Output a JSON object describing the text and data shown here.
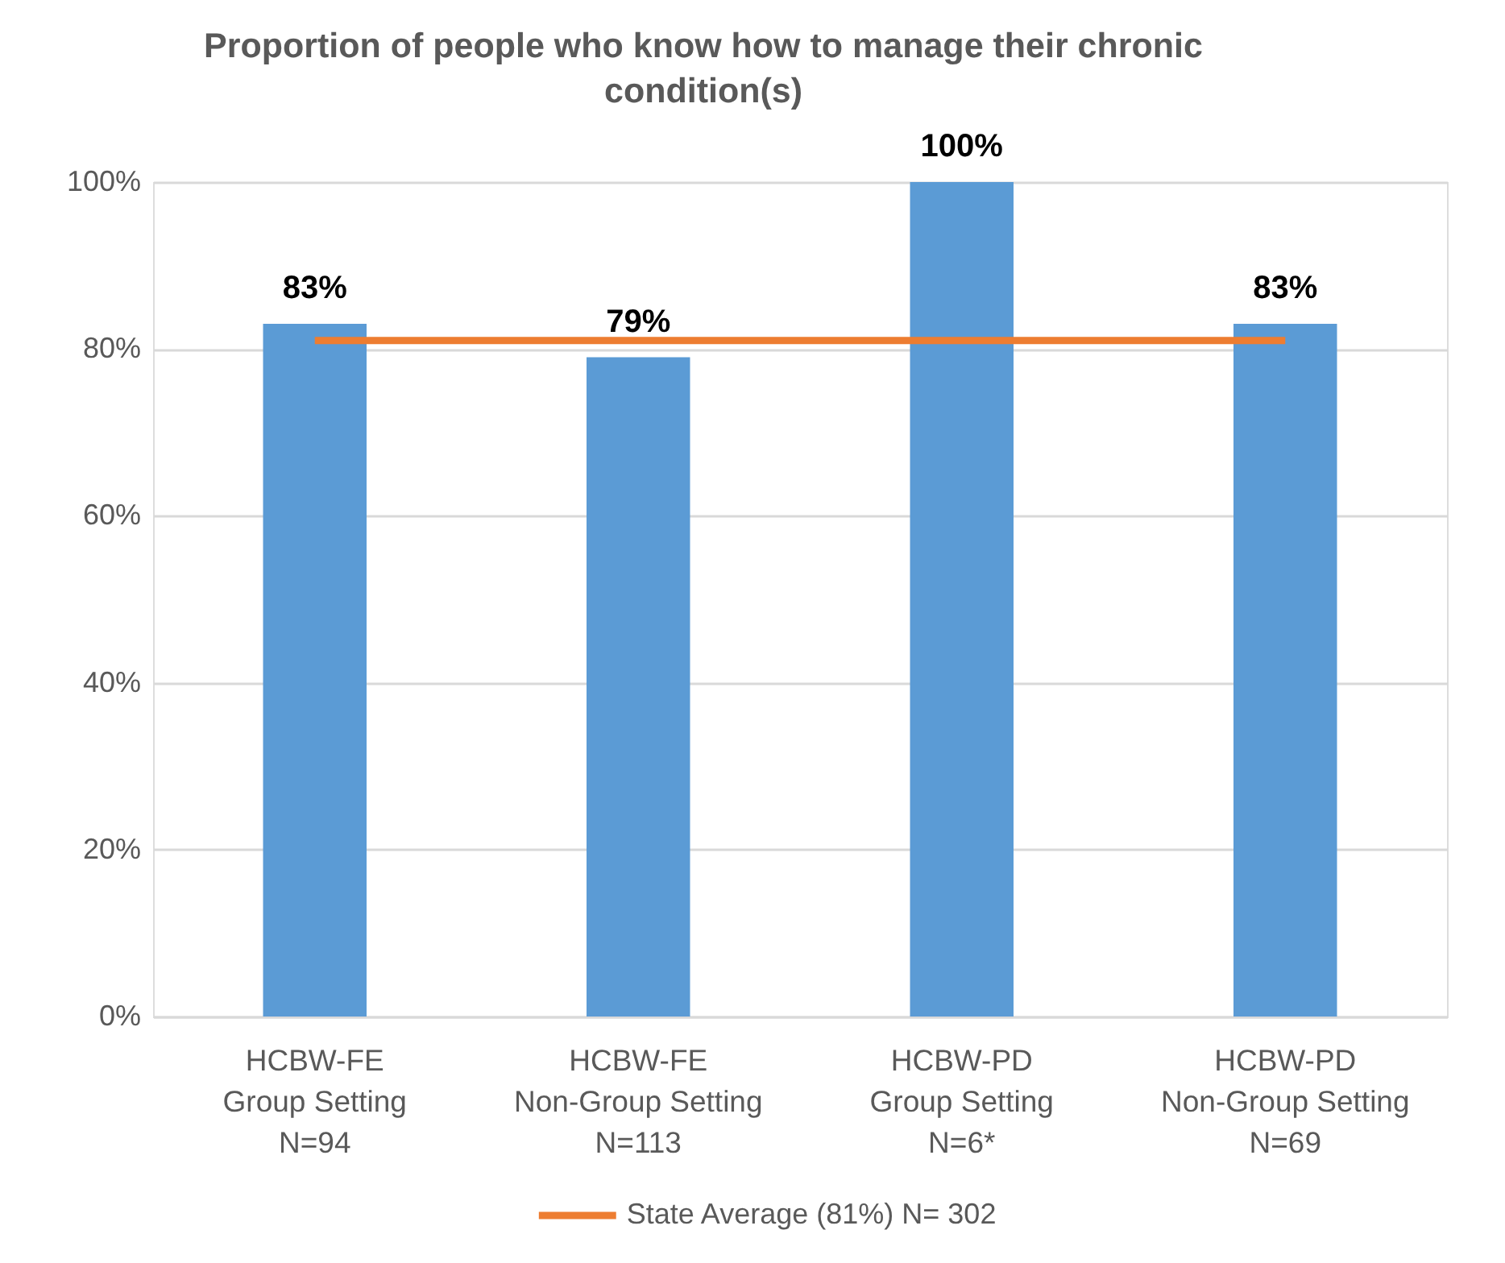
{
  "chart_data": {
    "type": "bar",
    "title": "Proportion of people who know how to manage their chronic condition(s)",
    "categories": [
      "HCBW-FE\nGroup Setting\nN=94",
      "HCBW-FE\nNon-Group Setting\nN=113",
      "HCBW-PD\nGroup Setting\nN=6*",
      "HCBW-PD\nNon-Group Setting\nN=69"
    ],
    "series": [
      {
        "color": "#5b9bd5",
        "values": [
          83,
          79,
          100,
          83
        ],
        "value_labels": [
          "83%",
          "79%",
          "100%",
          "83%"
        ]
      },
      {
        "type": "line",
        "name": "State Average (81%) N= 302",
        "color": "#ed7d31",
        "values": [
          81,
          81,
          81,
          81
        ]
      }
    ],
    "ylim": [
      0,
      100
    ],
    "yticks": [
      {
        "value": 0,
        "label": "0%"
      },
      {
        "value": 20,
        "label": "20%"
      },
      {
        "value": 40,
        "label": "40%"
      },
      {
        "value": 60,
        "label": "60%"
      },
      {
        "value": 80,
        "label": "80%"
      },
      {
        "value": 100,
        "label": "100%"
      }
    ],
    "grid": "y",
    "legend": "bottom"
  }
}
